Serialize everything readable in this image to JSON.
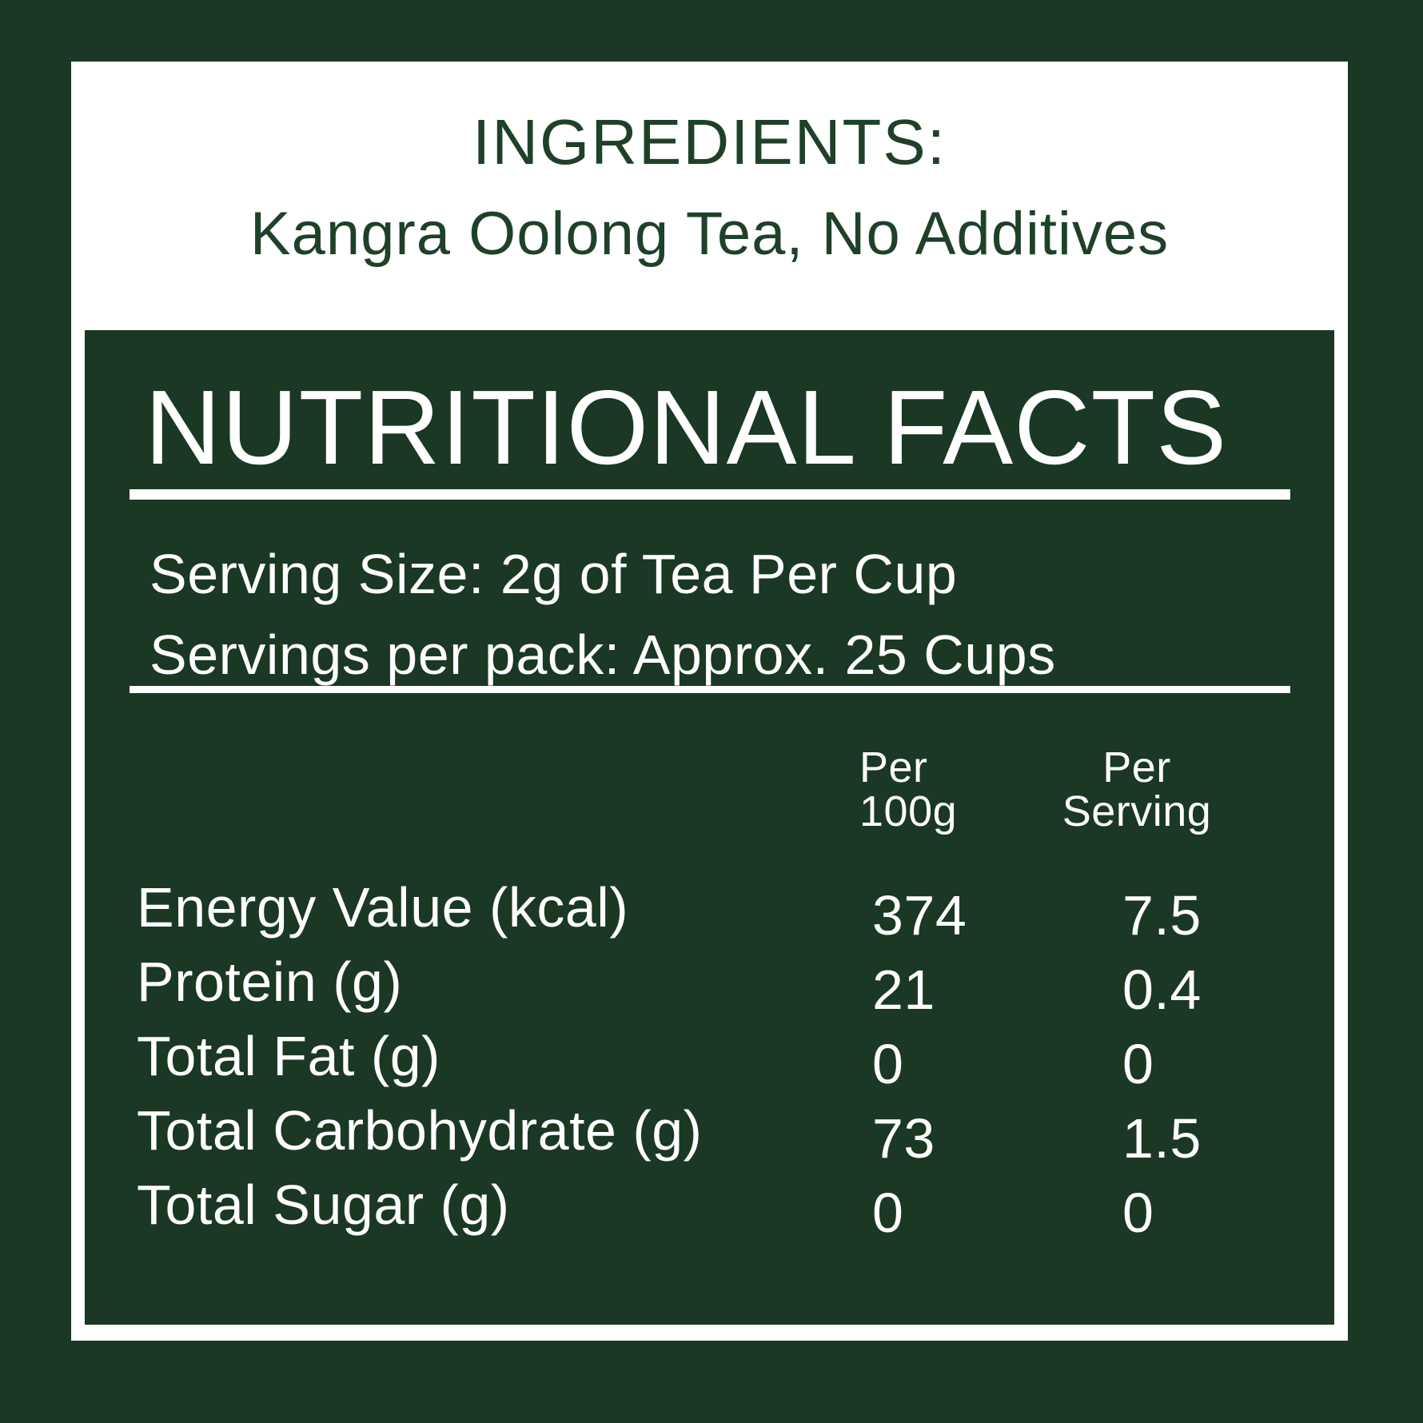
{
  "label": {
    "colors": {
      "background_green": "#1a3823",
      "text_green": "#1e4128",
      "panel_white": "#ffffff"
    },
    "ingredients": {
      "heading": "INGREDIENTS:",
      "value": "Kangra Oolong Tea, No Additives"
    },
    "facts": {
      "title": "NUTRITIONAL FACTS",
      "serving_size": "Serving Size: 2g of Tea Per Cup",
      "servings_per_pack": "Servings per pack: Approx. 25 Cups",
      "column_headers": {
        "per_100g": [
          "Per",
          "100g"
        ],
        "per_serving": [
          "Per",
          "Serving"
        ]
      },
      "rows": [
        {
          "label": "Energy Value (kcal)",
          "per_100g": "374",
          "per_serving": "7.5"
        },
        {
          "label": "Protein (g)",
          "per_100g": "21",
          "per_serving": "0.4"
        },
        {
          "label": "Total Fat (g)",
          "per_100g": "0",
          "per_serving": "0"
        },
        {
          "label": "Total Carbohydrate (g)",
          "per_100g": "73",
          "per_serving": "1.5"
        },
        {
          "label": "Total Sugar (g)",
          "per_100g": "0",
          "per_serving": "0"
        }
      ]
    }
  }
}
